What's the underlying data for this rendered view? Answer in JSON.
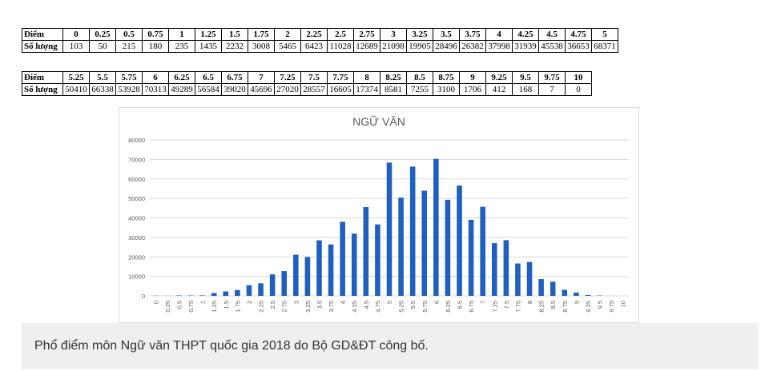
{
  "table1": {
    "header_label": "Điểm",
    "count_label": "Số lượng",
    "scores": [
      "0",
      "0.25",
      "0.5",
      "0.75",
      "1",
      "1.25",
      "1.5",
      "1.75",
      "2",
      "2.25",
      "2.5",
      "2.75",
      "3",
      "3.25",
      "3.5",
      "3.75",
      "4",
      "4.25",
      "4.5",
      "4.75",
      "5"
    ],
    "counts": [
      "103",
      "50",
      "215",
      "180",
      "235",
      "1435",
      "2232",
      "3008",
      "5465",
      "6423",
      "11028",
      "12689",
      "21098",
      "19905",
      "28496",
      "26382",
      "37998",
      "31939",
      "45538",
      "36653",
      "68371"
    ]
  },
  "table2": {
    "header_label": "Điểm",
    "count_label": "Số lượng",
    "scores": [
      "5.25",
      "5.5",
      "5.75",
      "6",
      "6.25",
      "6.5",
      "6.75",
      "7",
      "7.25",
      "7.5",
      "7.75",
      "8",
      "8.25",
      "8.5",
      "8.75",
      "9",
      "9.25",
      "9.5",
      "9.75",
      "10"
    ],
    "counts": [
      "50410",
      "66338",
      "53928",
      "70313",
      "49289",
      "56584",
      "39020",
      "45696",
      "27020",
      "28557",
      "16605",
      "17374",
      "8581",
      "7255",
      "3100",
      "1706",
      "412",
      "168",
      "7",
      "0"
    ]
  },
  "chart_data": {
    "type": "bar",
    "title": "NGỮ VĂN",
    "xlabel": "",
    "ylabel": "",
    "ylim": [
      0,
      80000
    ],
    "yticks": [
      "0",
      "10000",
      "20000",
      "30000",
      "40000",
      "50000",
      "60000",
      "70000",
      "80000"
    ],
    "grid": true,
    "bar_color": "#1f5fbf",
    "categories": [
      "0",
      "0.25",
      "0.5",
      "0.75",
      "1",
      "1.25",
      "1.5",
      "1.75",
      "2",
      "2.25",
      "2.5",
      "2.75",
      "3",
      "3.25",
      "3.5",
      "3.75",
      "4",
      "4.25",
      "4.5",
      "4.75",
      "5",
      "5.25",
      "5.5",
      "5.75",
      "6",
      "6.25",
      "6.5",
      "6.75",
      "7",
      "7.25",
      "7.5",
      "7.75",
      "8",
      "8.25",
      "8.5",
      "8.75",
      "9",
      "9.25",
      "9.5",
      "9.75",
      "10"
    ],
    "values": [
      103,
      50,
      215,
      180,
      235,
      1435,
      2232,
      3008,
      5465,
      6423,
      11028,
      12689,
      21098,
      19905,
      28496,
      26382,
      37998,
      31939,
      45538,
      36653,
      68371,
      50410,
      66338,
      53928,
      70313,
      49289,
      56584,
      39020,
      45696,
      27020,
      28557,
      16605,
      17374,
      8581,
      7255,
      3100,
      1706,
      412,
      168,
      7,
      0
    ]
  },
  "caption": "Phổ điểm môn Ngữ văn THPT quốc gia 2018 do Bộ GD&ĐT công bố."
}
